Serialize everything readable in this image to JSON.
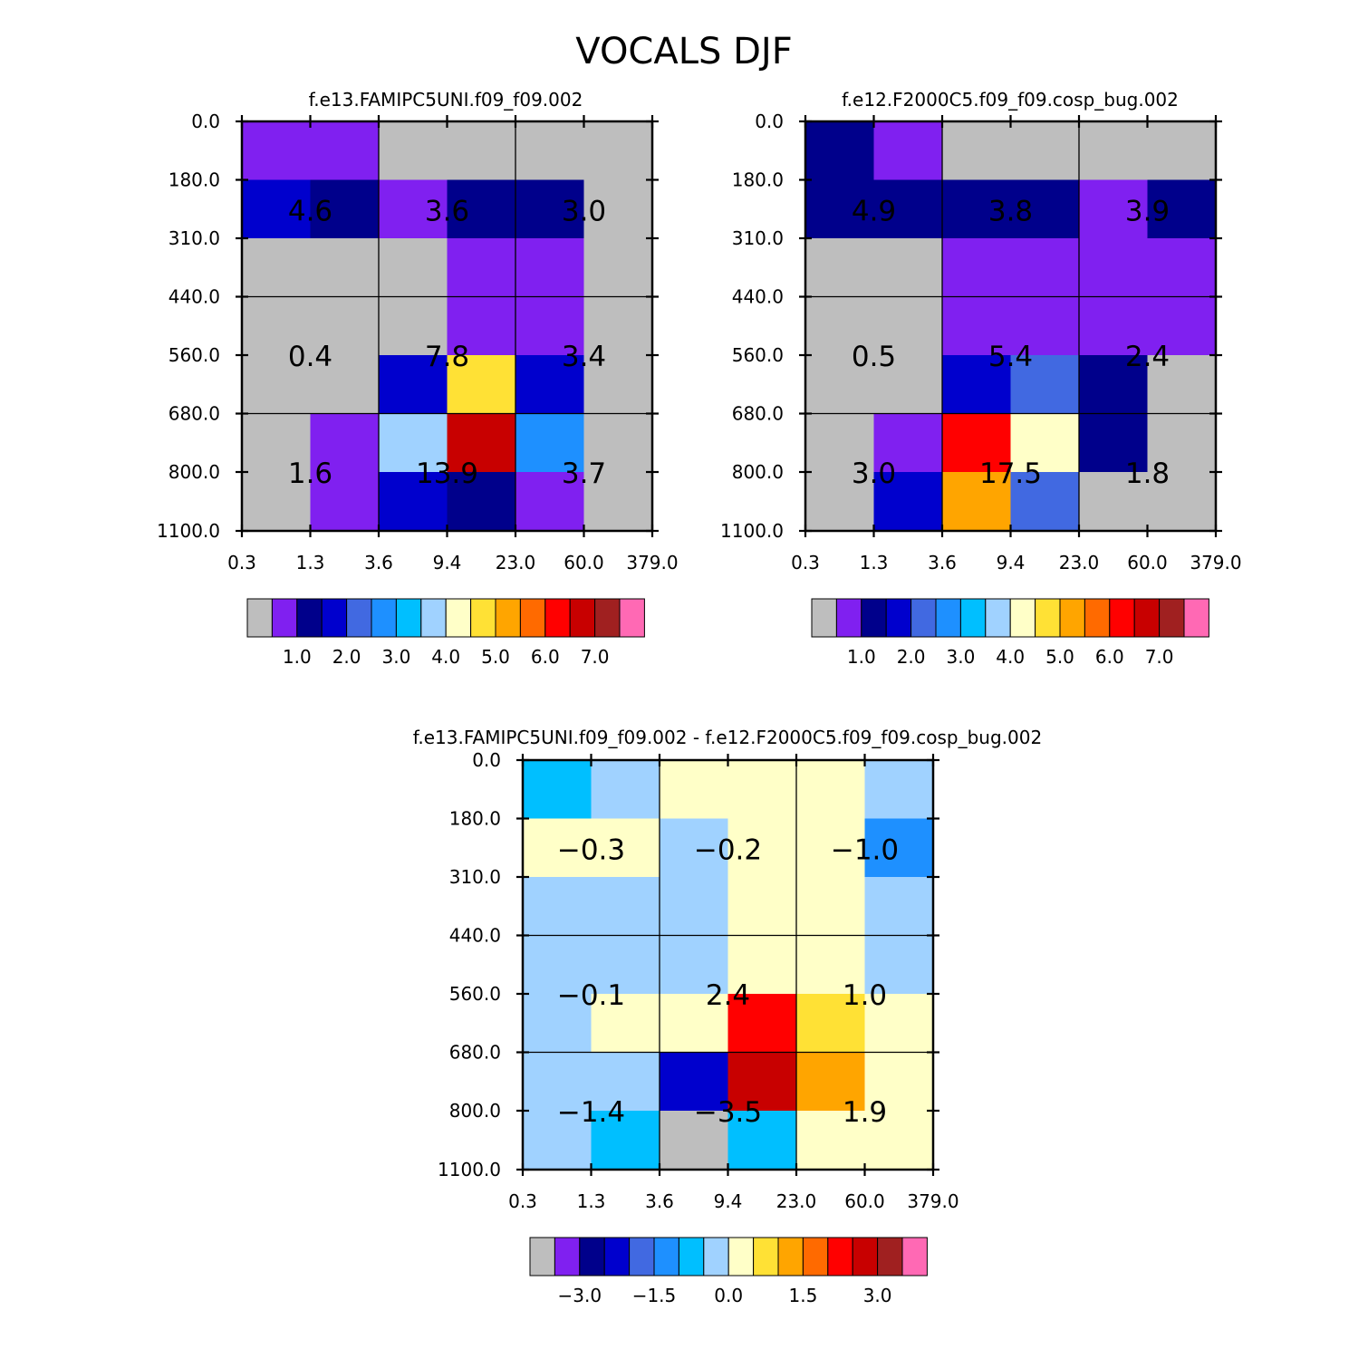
{
  "figure": {
    "title": "VOCALS DJF"
  },
  "scales": {
    "abs": {
      "colors": [
        "#bebebe",
        "#8020f0",
        "#00008b",
        "#0000cd",
        "#4169e1",
        "#1e90ff",
        "#00bfff",
        "#a0d2ff",
        "#ffffc8",
        "#ffe135",
        "#ffa500",
        "#ff6a00",
        "#ff0000",
        "#c80000",
        "#a02020",
        "#ff69b4"
      ],
      "bounds": [
        0.01,
        1.0,
        1.5,
        2.0,
        2.5,
        3.0,
        3.5,
        4.0,
        4.5,
        5.0,
        5.5,
        6.0,
        6.5,
        7.0,
        7.5
      ],
      "labels": [
        "1.0",
        "2.0",
        "3.0",
        "4.0",
        "5.0",
        "6.0",
        "7.0"
      ]
    },
    "diff": {
      "colors": [
        "#bebebe",
        "#8020f0",
        "#00008b",
        "#0000cd",
        "#4169e1",
        "#1e90ff",
        "#00bfff",
        "#a0d2ff",
        "#ffffc8",
        "#ffe135",
        "#ffa500",
        "#ff6a00",
        "#ff0000",
        "#c80000",
        "#a02020",
        "#ff69b4"
      ],
      "bounds": [
        -4.0,
        -3.0,
        -2.5,
        -2.0,
        -1.5,
        -1.0,
        -0.5,
        0.0,
        0.5,
        1.0,
        1.5,
        2.0,
        2.5,
        3.0,
        3.5
      ],
      "labels": [
        "-3.0",
        "-1.5",
        "0.0",
        "1.5",
        "3.0"
      ]
    }
  },
  "chart_data": [
    {
      "type": "heatmap",
      "title": "f.e13.FAMIPC5UNI.f09_f09.002",
      "x_tick_labels": [
        "0.3",
        "1.3",
        "3.6",
        "9.4",
        "23.0",
        "60.0",
        "379.0"
      ],
      "y_tick_labels": [
        "0.0",
        "180.0",
        "310.0",
        "440.0",
        "560.0",
        "680.0",
        "800.0",
        "1100.0"
      ],
      "scale": "abs",
      "color_index": [
        [
          1,
          1,
          0,
          0,
          0,
          0
        ],
        [
          3,
          2,
          1,
          2,
          2,
          0
        ],
        [
          0,
          0,
          0,
          1,
          1,
          0
        ],
        [
          0,
          0,
          0,
          1,
          1,
          0
        ],
        [
          0,
          0,
          3,
          9,
          3,
          0
        ],
        [
          0,
          1,
          7,
          13,
          5,
          0
        ],
        [
          0,
          1,
          3,
          2,
          1,
          0
        ]
      ],
      "box_values": [
        [
          "4.6",
          "3.6",
          "3.0"
        ],
        [
          "0.4",
          "7.8",
          "3.4"
        ],
        [
          "1.6",
          "13.9",
          "3.7"
        ]
      ]
    },
    {
      "type": "heatmap",
      "title": "f.e12.F2000C5.f09_f09.cosp_bug.002",
      "x_tick_labels": [
        "0.3",
        "1.3",
        "3.6",
        "9.4",
        "23.0",
        "60.0",
        "379.0"
      ],
      "y_tick_labels": [
        "0.0",
        "180.0",
        "310.0",
        "440.0",
        "560.0",
        "680.0",
        "800.0",
        "1100.0"
      ],
      "scale": "abs",
      "color_index": [
        [
          2,
          1,
          0,
          0,
          0,
          0
        ],
        [
          2,
          2,
          2,
          2,
          1,
          2
        ],
        [
          0,
          0,
          1,
          1,
          1,
          1
        ],
        [
          0,
          0,
          1,
          1,
          1,
          1
        ],
        [
          0,
          0,
          3,
          4,
          2,
          0
        ],
        [
          0,
          1,
          12,
          8,
          2,
          0
        ],
        [
          0,
          3,
          10,
          4,
          0,
          0
        ]
      ],
      "box_values": [
        [
          "4.9",
          "3.8",
          "3.9"
        ],
        [
          "0.5",
          "5.4",
          "2.4"
        ],
        [
          "3.0",
          "17.5",
          "1.8"
        ]
      ]
    },
    {
      "type": "heatmap",
      "title": "f.e13.FAMIPC5UNI.f09_f09.002 - f.e12.F2000C5.f09_f09.cosp_bug.002",
      "x_tick_labels": [
        "0.3",
        "1.3",
        "3.6",
        "9.4",
        "23.0",
        "60.0",
        "379.0"
      ],
      "y_tick_labels": [
        "0.0",
        "180.0",
        "310.0",
        "440.0",
        "560.0",
        "680.0",
        "800.0",
        "1100.0"
      ],
      "scale": "diff",
      "color_index": [
        [
          6,
          7,
          8,
          8,
          8,
          7
        ],
        [
          8,
          8,
          7,
          8,
          8,
          5
        ],
        [
          7,
          7,
          7,
          8,
          8,
          7
        ],
        [
          7,
          7,
          7,
          8,
          8,
          7
        ],
        [
          7,
          8,
          8,
          12,
          9,
          8
        ],
        [
          7,
          7,
          3,
          13,
          10,
          8
        ],
        [
          7,
          6,
          0,
          6,
          8,
          8
        ]
      ],
      "box_values": [
        [
          "-0.3",
          "-0.2",
          "-1.0"
        ],
        [
          "-0.1",
          "2.4",
          "1.0"
        ],
        [
          "-1.4",
          "-3.5",
          "1.9"
        ]
      ]
    }
  ]
}
